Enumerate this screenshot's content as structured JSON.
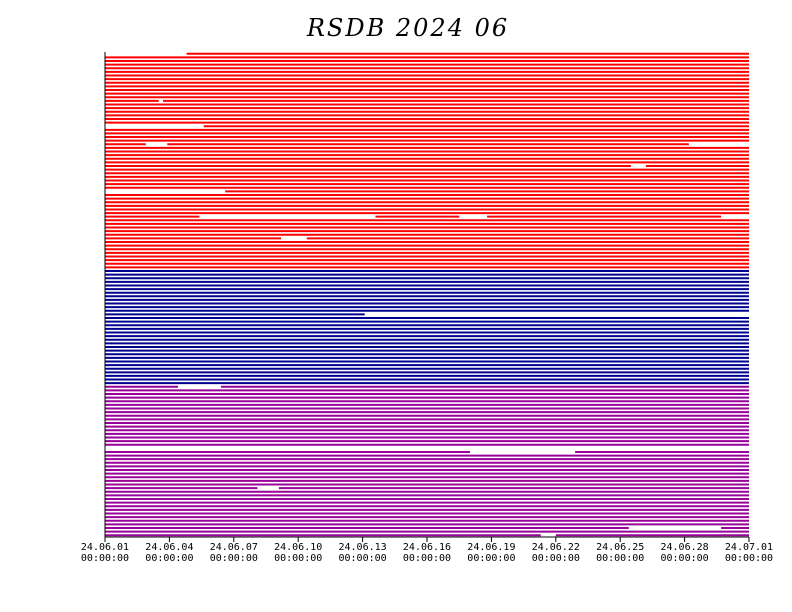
{
  "chart_data": {
    "type": "timeline",
    "title": "RSDB  2024  06",
    "xlim": [
      0,
      30
    ],
    "xticks": [
      {
        "value": 0,
        "label": "24.06.01\n00:00:00"
      },
      {
        "value": 3,
        "label": "24.06.04\n00:00:00"
      },
      {
        "value": 6,
        "label": "24.06.07\n00:00:00"
      },
      {
        "value": 9,
        "label": "24.06.10\n00:00:00"
      },
      {
        "value": 12,
        "label": "24.06.13\n00:00:00"
      },
      {
        "value": 15,
        "label": "24.06.16\n00:00:00"
      },
      {
        "value": 18,
        "label": "24.06.19\n00:00:00"
      },
      {
        "value": 21,
        "label": "24.06.22\n00:00:00"
      },
      {
        "value": 24,
        "label": "24.06.25\n00:00:00"
      },
      {
        "value": 27,
        "label": "24.06.28\n00:00:00"
      },
      {
        "value": 30,
        "label": "24.07.01\n00:00:00"
      }
    ],
    "series": [
      {
        "color": "#ff0000",
        "rows": [
          [
            [
              3.8,
              30
            ]
          ],
          [
            [
              0,
              30
            ]
          ],
          [
            [
              0,
              30
            ]
          ],
          [
            [
              0,
              30
            ]
          ],
          [
            [
              0,
              30
            ]
          ],
          [
            [
              0,
              30
            ]
          ],
          [
            [
              0,
              30
            ]
          ],
          [
            [
              0,
              30
            ]
          ],
          [
            [
              0,
              30
            ]
          ],
          [
            [
              0,
              30
            ]
          ],
          [
            [
              0,
              30
            ]
          ],
          [
            [
              0,
              30
            ]
          ],
          [
            [
              0,
              30
            ]
          ],
          [
            [
              0,
              2.5
            ],
            [
              2.7,
              30
            ]
          ],
          [
            [
              0,
              30
            ]
          ],
          [
            [
              0,
              30
            ]
          ],
          [
            [
              0,
              30
            ]
          ],
          [
            [
              0,
              30
            ]
          ],
          [
            [
              0,
              30
            ]
          ],
          [
            [
              0,
              30
            ]
          ],
          [
            [
              4.6,
              30
            ]
          ],
          [
            [
              0,
              30
            ]
          ],
          [
            [
              0,
              30
            ]
          ],
          [
            [
              0,
              30
            ]
          ],
          [
            [
              0,
              30
            ]
          ],
          [
            [
              0,
              1.9
            ],
            [
              2.9,
              27.2
            ]
          ],
          [
            [
              0,
              30
            ]
          ],
          [
            [
              0,
              30
            ]
          ],
          [
            [
              0,
              30
            ]
          ],
          [
            [
              0,
              30
            ]
          ],
          [
            [
              0,
              30
            ]
          ],
          [
            [
              0,
              24.5
            ],
            [
              25.2,
              30
            ]
          ],
          [
            [
              0,
              30
            ]
          ],
          [
            [
              0,
              30
            ]
          ],
          [
            [
              0,
              30
            ]
          ],
          [
            [
              0,
              30
            ]
          ],
          [
            [
              0,
              30
            ]
          ],
          [
            [
              0,
              30
            ]
          ],
          [
            [
              5.6,
              30
            ]
          ],
          [
            [
              0,
              30
            ]
          ],
          [
            [
              0,
              30
            ]
          ],
          [
            [
              0,
              30
            ]
          ],
          [
            [
              0,
              30
            ]
          ],
          [
            [
              0,
              30
            ]
          ],
          [
            [
              0,
              30
            ]
          ],
          [
            [
              0,
              4.4
            ],
            [
              12.6,
              16.5
            ],
            [
              17.8,
              28.7
            ]
          ],
          [
            [
              0,
              30
            ]
          ],
          [
            [
              0,
              30
            ]
          ],
          [
            [
              0,
              30
            ]
          ],
          [
            [
              0,
              30
            ]
          ],
          [
            [
              0,
              30
            ]
          ],
          [
            [
              0,
              8.2
            ],
            [
              9.4,
              30
            ]
          ],
          [
            [
              0,
              30
            ]
          ],
          [
            [
              0,
              30
            ]
          ],
          [
            [
              0,
              30
            ]
          ],
          [
            [
              0,
              30
            ]
          ],
          [
            [
              0,
              30
            ]
          ],
          [
            [
              0,
              30
            ]
          ],
          [
            [
              0,
              30
            ]
          ],
          [
            [
              0,
              30
            ]
          ]
        ]
      },
      {
        "color": "#000090",
        "rows": [
          [
            [
              0,
              30
            ]
          ],
          [
            [
              0,
              30
            ]
          ],
          [
            [
              0,
              30
            ]
          ],
          [
            [
              0,
              30
            ]
          ],
          [
            [
              0,
              30
            ]
          ],
          [
            [
              0,
              30
            ]
          ],
          [
            [
              0,
              30
            ]
          ],
          [
            [
              0,
              30
            ]
          ],
          [
            [
              0,
              30
            ]
          ],
          [
            [
              0,
              30
            ]
          ],
          [
            [
              0,
              30
            ]
          ],
          [
            [
              0,
              30
            ]
          ],
          [
            [
              0,
              12.1
            ]
          ],
          [
            [
              0,
              30
            ]
          ],
          [
            [
              0,
              30
            ]
          ],
          [
            [
              0,
              30
            ]
          ],
          [
            [
              0,
              30
            ]
          ],
          [
            [
              0,
              30
            ]
          ],
          [
            [
              0,
              30
            ]
          ],
          [
            [
              0,
              30
            ]
          ],
          [
            [
              0,
              30
            ]
          ],
          [
            [
              0,
              30
            ]
          ],
          [
            [
              0,
              30
            ]
          ],
          [
            [
              0,
              30
            ]
          ],
          [
            [
              0,
              30
            ]
          ],
          [
            [
              0,
              30
            ]
          ],
          [
            [
              0,
              30
            ]
          ],
          [
            [
              0,
              30
            ]
          ],
          [
            [
              0,
              30
            ]
          ],
          [
            [
              0,
              30
            ]
          ],
          [
            [
              0,
              30
            ]
          ],
          [
            [
              0,
              30
            ]
          ]
        ]
      },
      {
        "color": "#990099",
        "rows": [
          [
            [
              0,
              3.4
            ],
            [
              5.4,
              30
            ]
          ],
          [
            [
              0,
              30
            ]
          ],
          [
            [
              0,
              30
            ]
          ],
          [
            [
              0,
              30
            ]
          ],
          [
            [
              0,
              30
            ]
          ],
          [
            [
              0,
              30
            ]
          ],
          [
            [
              0,
              30
            ]
          ],
          [
            [
              0,
              30
            ]
          ],
          [
            [
              0,
              30
            ]
          ],
          [
            [
              0,
              30
            ]
          ],
          [
            [
              0,
              30
            ]
          ],
          [
            [
              0,
              30
            ]
          ],
          [
            [
              0,
              30
            ]
          ],
          [
            [
              0,
              30
            ]
          ],
          [
            [
              0,
              30
            ]
          ],
          [
            [
              0,
              30
            ]
          ],
          [
            [
              0,
              30
            ]
          ],
          [],
          [
            [
              0,
              17
            ],
            [
              21.9,
              30
            ]
          ],
          [
            [
              0,
              30
            ]
          ],
          [
            [
              0,
              30
            ]
          ],
          [
            [
              0,
              30
            ]
          ],
          [
            [
              0,
              30
            ]
          ],
          [
            [
              0,
              30
            ]
          ],
          [
            [
              0,
              30
            ]
          ],
          [
            [
              0,
              30
            ]
          ],
          [
            [
              0,
              30
            ]
          ],
          [
            [
              0,
              30
            ]
          ],
          [
            [
              0,
              7.1
            ],
            [
              8.1,
              30
            ]
          ],
          [
            [
              0,
              30
            ]
          ],
          [
            [
              0,
              30
            ]
          ],
          [
            [
              0,
              30
            ]
          ],
          [
            [
              0,
              30
            ]
          ],
          [
            [
              0,
              30
            ]
          ],
          [
            [
              0,
              30
            ]
          ],
          [
            [
              0,
              30
            ]
          ],
          [
            [
              0,
              30
            ]
          ],
          [
            [
              0,
              30
            ]
          ],
          [
            [
              0,
              30
            ]
          ],
          [
            [
              0,
              24.4
            ],
            [
              28.7,
              30
            ]
          ],
          [
            [
              0,
              30
            ]
          ],
          [
            [
              0,
              20.3
            ],
            [
              21,
              30
            ]
          ]
        ]
      }
    ]
  }
}
